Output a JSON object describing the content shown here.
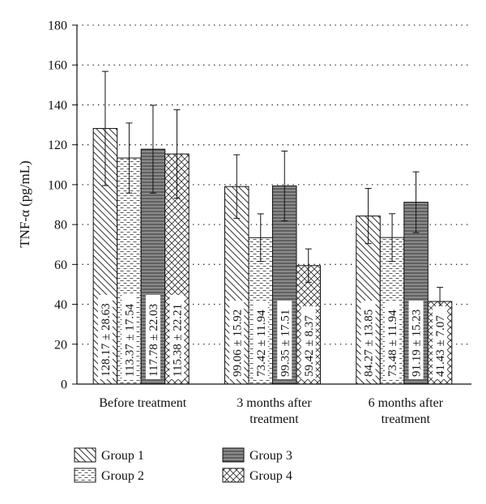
{
  "chart_data": {
    "type": "bar",
    "ylabel": "TNF-α (pg/mL)",
    "ylim": [
      0,
      180
    ],
    "yticks": [
      0,
      20,
      40,
      60,
      80,
      100,
      120,
      140,
      160,
      180
    ],
    "grid": true,
    "categories": [
      [
        "Before treatment"
      ],
      [
        "3 months after",
        "treatment"
      ],
      [
        "6 months after",
        "treatment"
      ]
    ],
    "series": [
      {
        "name": "Group 1",
        "pattern": "diagonal-down",
        "values": [
          128.17,
          99.06,
          84.27
        ],
        "sd": [
          28.63,
          15.92,
          13.85
        ],
        "labels": [
          "128.17 ± 28.63",
          "99.06 ± 15.92",
          "84.27 ± 13.85"
        ]
      },
      {
        "name": "Group 2",
        "pattern": "dashes",
        "values": [
          113.37,
          73.42,
          73.48
        ],
        "sd": [
          17.54,
          11.94,
          11.94
        ],
        "labels": [
          "113.37 ± 17.54",
          "73.42 ± 11.94",
          "73.48 ± 11.94"
        ]
      },
      {
        "name": "Group 3",
        "pattern": "horizontal-lines",
        "values": [
          117.78,
          99.35,
          91.19
        ],
        "sd": [
          22.03,
          17.51,
          15.23
        ],
        "labels": [
          "117.78 ± 22.03",
          "99.35 ± 17.51",
          "91.19 ± 15.23"
        ]
      },
      {
        "name": "Group 4",
        "pattern": "crosshatch",
        "values": [
          115.38,
          59.42,
          41.43
        ],
        "sd": [
          22.21,
          8.37,
          7.07
        ],
        "labels": [
          "115.38 ± 22.21",
          "59.42 ± 8.37",
          "41.43 ± 7.07"
        ]
      }
    ],
    "legend": {
      "position": "bottom",
      "columns": 2
    }
  }
}
